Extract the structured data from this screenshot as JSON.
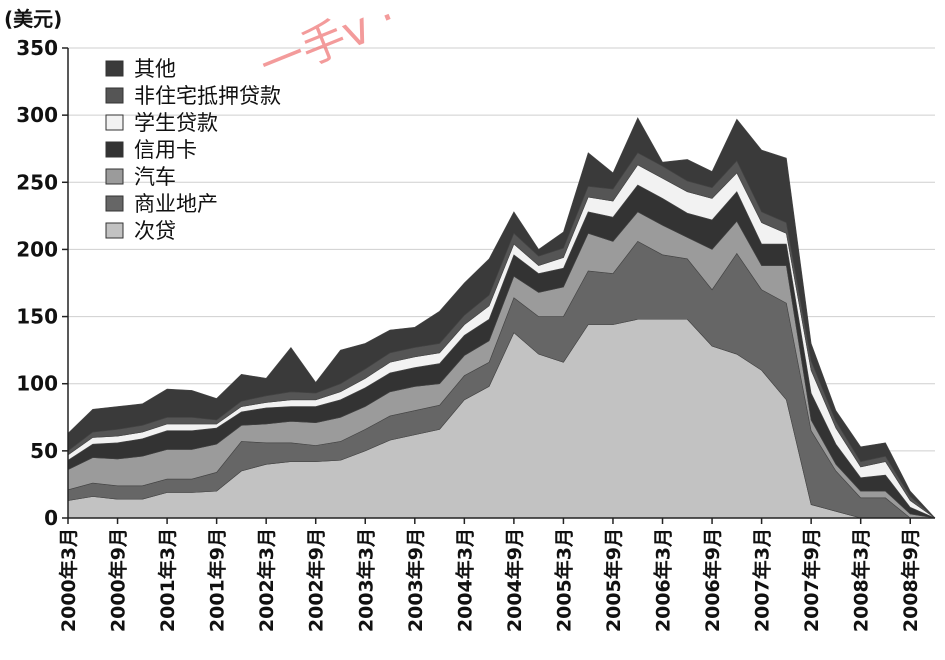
{
  "chart_data": {
    "type": "area",
    "stacked": true,
    "unit_label": "(美元)",
    "ylim": [
      0,
      350
    ],
    "yticks": [
      0,
      50,
      100,
      150,
      200,
      250,
      300,
      350
    ],
    "grid": true,
    "legend_position": "top-left",
    "x": [
      "2000-03",
      "2000-06",
      "2000-09",
      "2000-12",
      "2001-03",
      "2001-06",
      "2001-09",
      "2001-12",
      "2002-03",
      "2002-06",
      "2002-09",
      "2002-12",
      "2003-03",
      "2003-06",
      "2003-09",
      "2003-12",
      "2004-03",
      "2004-06",
      "2004-09",
      "2004-12",
      "2005-03",
      "2005-06",
      "2005-09",
      "2005-12",
      "2006-03",
      "2006-06",
      "2006-09",
      "2006-12",
      "2007-03",
      "2007-06",
      "2007-09",
      "2007-12",
      "2008-03",
      "2008-06",
      "2008-09",
      "2008-12"
    ],
    "xtick_labels": [
      "2000年3月",
      "2000年9月",
      "2001年3月",
      "2001年9月",
      "2002年3月",
      "2002年9月",
      "2003年3月",
      "2003年9月",
      "2004年3月",
      "2004年9月",
      "2005年3月",
      "2005年9月",
      "2006年3月",
      "2006年9月",
      "2007年3月",
      "2007年9月",
      "2008年3月",
      "2008年9月"
    ],
    "series": [
      {
        "name": "次贷",
        "color": "#c2c2c2",
        "values": [
          13,
          16,
          14,
          14,
          19,
          19,
          20,
          35,
          40,
          42,
          42,
          43,
          50,
          58,
          62,
          66,
          88,
          98,
          138,
          122,
          116,
          144,
          144,
          148,
          148,
          148,
          128,
          122,
          110,
          88,
          10,
          5,
          0,
          0,
          0,
          0
        ]
      },
      {
        "name": "商业地产",
        "color": "#666666",
        "values": [
          8,
          10,
          10,
          10,
          10,
          10,
          14,
          22,
          16,
          14,
          12,
          14,
          16,
          18,
          18,
          18,
          18,
          18,
          26,
          28,
          34,
          40,
          38,
          58,
          48,
          45,
          42,
          75,
          60,
          72,
          55,
          30,
          15,
          15,
          0,
          0
        ]
      },
      {
        "name": "汽车",
        "color": "#9b9b9b",
        "values": [
          15,
          19,
          20,
          22,
          22,
          22,
          21,
          12,
          14,
          16,
          17,
          18,
          17,
          18,
          18,
          16,
          15,
          16,
          16,
          18,
          22,
          28,
          24,
          22,
          22,
          16,
          30,
          24,
          18,
          28,
          8,
          5,
          5,
          5,
          3,
          0
        ]
      },
      {
        "name": "信用卡",
        "color": "#333333",
        "values": [
          7,
          10,
          12,
          13,
          14,
          14,
          12,
          10,
          12,
          11,
          12,
          13,
          14,
          14,
          14,
          15,
          15,
          16,
          16,
          14,
          14,
          16,
          18,
          20,
          20,
          18,
          22,
          22,
          16,
          16,
          20,
          15,
          10,
          12,
          5,
          0
        ]
      },
      {
        "name": "学生贷款",
        "color": "#f2f2f2",
        "values": [
          4,
          5,
          5,
          5,
          5,
          5,
          3,
          4,
          4,
          5,
          5,
          6,
          7,
          8,
          8,
          8,
          8,
          10,
          8,
          6,
          8,
          11,
          12,
          15,
          15,
          16,
          16,
          14,
          16,
          8,
          17,
          12,
          8,
          10,
          5,
          0
        ]
      },
      {
        "name": "非住宅抵押贷款",
        "color": "#555555",
        "values": [
          3,
          4,
          5,
          5,
          5,
          5,
          3,
          4,
          5,
          6,
          5,
          6,
          7,
          7,
          7,
          7,
          7,
          8,
          8,
          7,
          7,
          8,
          9,
          9,
          9,
          8,
          8,
          9,
          8,
          8,
          7,
          5,
          4,
          4,
          3,
          0
        ]
      },
      {
        "name": "其他",
        "color": "#3a3a3a",
        "values": [
          13,
          17,
          17,
          16,
          21,
          20,
          16,
          20,
          13,
          33,
          8,
          25,
          19,
          17,
          15,
          24,
          24,
          27,
          16,
          5,
          12,
          25,
          12,
          26,
          3,
          16,
          12,
          31,
          46,
          48,
          13,
          8,
          11,
          10,
          4,
          0
        ]
      }
    ]
  },
  "watermark": {
    "text": "一手v ·"
  }
}
